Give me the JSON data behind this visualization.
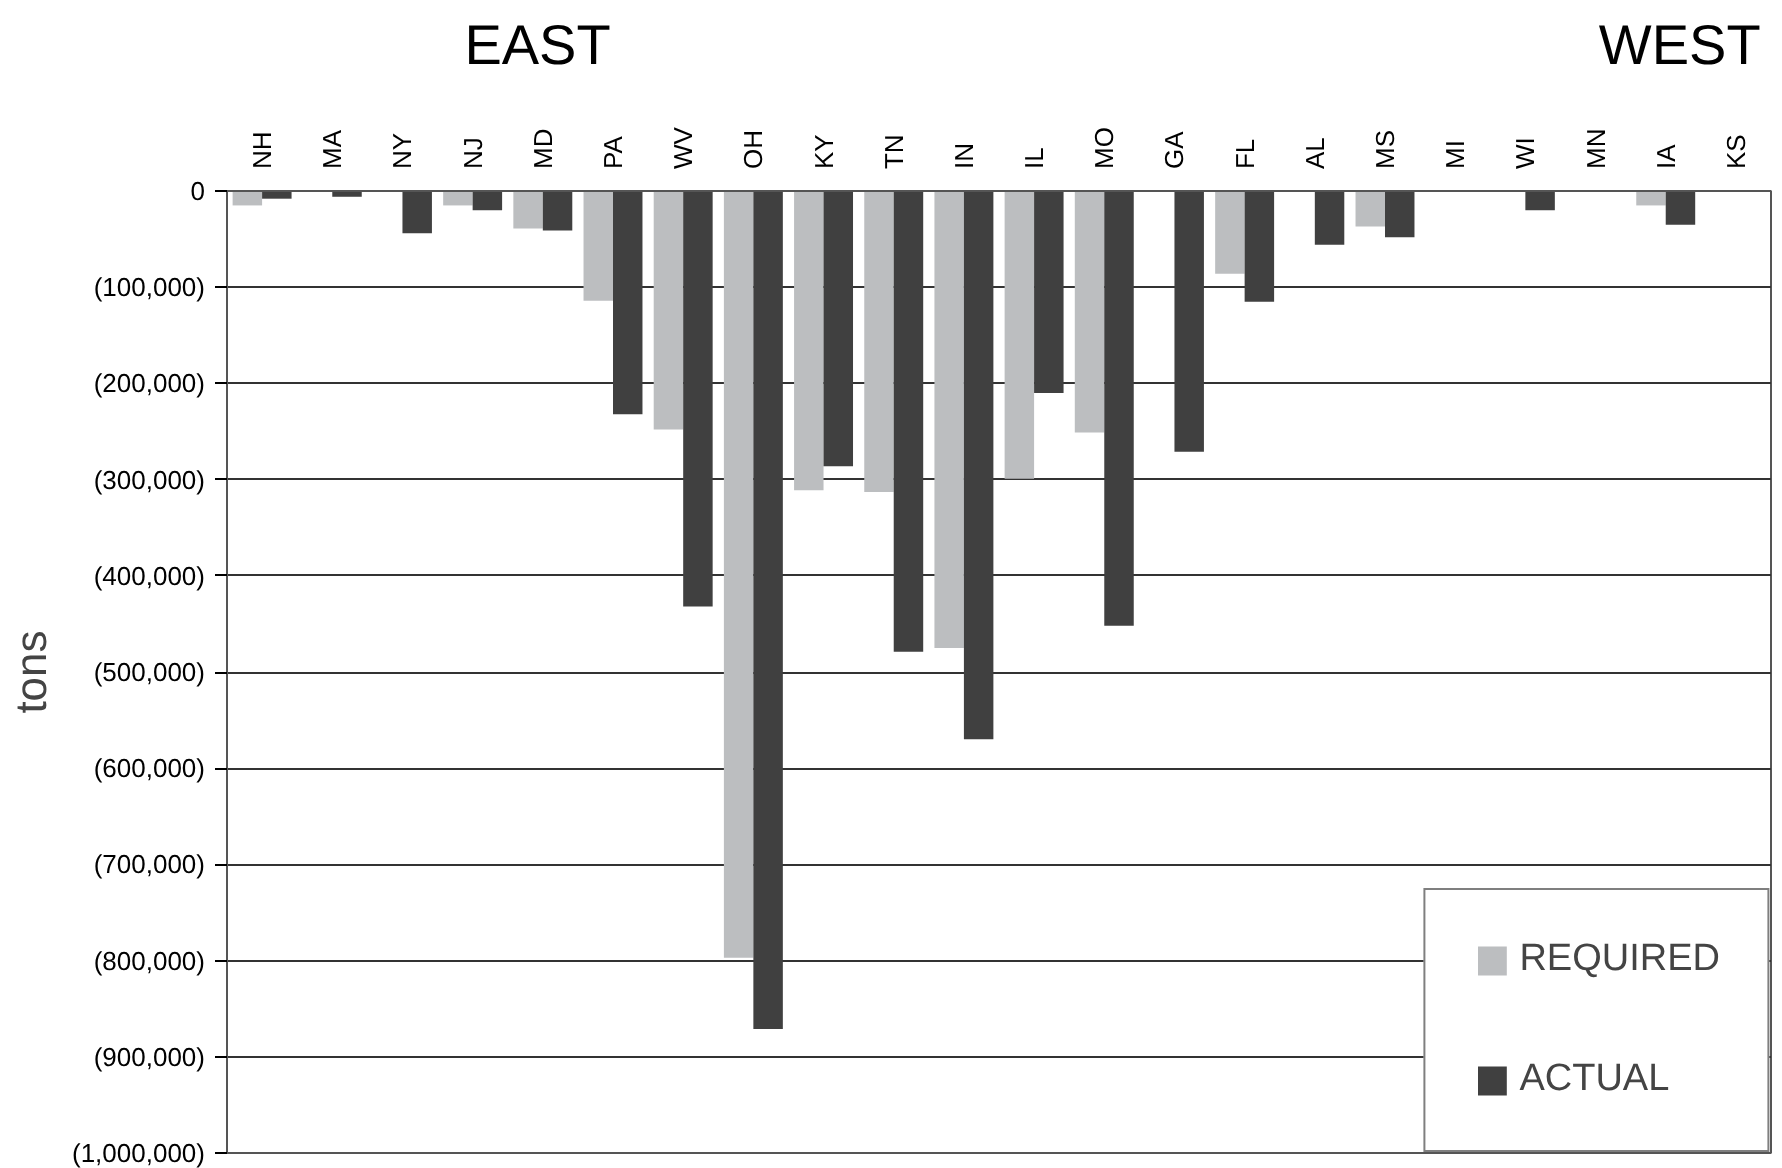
{
  "chart_data": {
    "type": "bar",
    "ylabel": "tons",
    "annotations": [
      "EAST",
      "WEST"
    ],
    "categories": [
      "NH",
      "MA",
      "NY",
      "NJ",
      "MD",
      "PA",
      "WV",
      "OH",
      "KY",
      "TN",
      "IN",
      "IL",
      "MO",
      "GA",
      "FL",
      "AL",
      "MS",
      "MI",
      "WI",
      "MN",
      "IA",
      "KS"
    ],
    "series": [
      {
        "name": "REQUIRED",
        "color": "#bcbec0",
        "values": [
          -15000,
          0,
          0,
          -15000,
          -39000,
          -114000,
          -248000,
          -797000,
          -311000,
          -313000,
          -475000,
          -299000,
          -251000,
          0,
          -86000,
          0,
          -37000,
          0,
          0,
          0,
          -15000,
          0
        ]
      },
      {
        "name": "ACTUAL",
        "color": "#404040",
        "values": [
          -8000,
          -6000,
          -44000,
          -20000,
          -41000,
          -232000,
          -432000,
          -871000,
          -286000,
          -479000,
          -570000,
          -210000,
          -452000,
          -271000,
          -115000,
          -56000,
          -48000,
          -1000,
          -20000,
          0,
          -35000,
          -1000
        ]
      }
    ],
    "ylim": [
      -1000000,
      0
    ],
    "yticks": [
      {
        "value": 0,
        "label": "0"
      },
      {
        "value": -100000,
        "label": "(100,000)"
      },
      {
        "value": -200000,
        "label": "(200,000)"
      },
      {
        "value": -300000,
        "label": "(300,000)"
      },
      {
        "value": -400000,
        "label": "(400,000)"
      },
      {
        "value": -500000,
        "label": "(500,000)"
      },
      {
        "value": -600000,
        "label": "(600,000)"
      },
      {
        "value": -700000,
        "label": "(700,000)"
      },
      {
        "value": -800000,
        "label": "(800,000)"
      },
      {
        "value": -900000,
        "label": "(900,000)"
      },
      {
        "value": -1000000,
        "label": "(1,000,000)"
      }
    ],
    "grid": "y",
    "legend": "bottom right"
  }
}
